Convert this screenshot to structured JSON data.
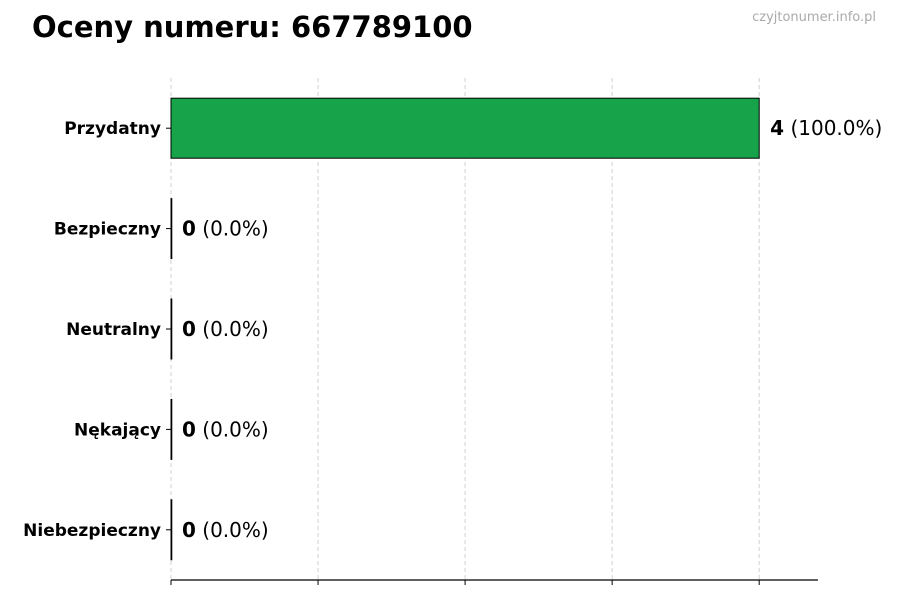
{
  "header": {
    "title": "Oceny numeru: 667789100",
    "watermark": "czyjtonumer.info.pl"
  },
  "chart_data": {
    "type": "bar",
    "orientation": "horizontal",
    "title": "Oceny numeru: 667789100",
    "categories": [
      "Przydatny",
      "Bezpieczny",
      "Neutralny",
      "Nękający",
      "Niebezpieczny"
    ],
    "values": [
      4,
      0,
      0,
      0,
      0
    ],
    "labels": [
      {
        "count": "4",
        "percent": "(100.0%)"
      },
      {
        "count": "0",
        "percent": "(0.0%)"
      },
      {
        "count": "0",
        "percent": "(0.0%)"
      },
      {
        "count": "0",
        "percent": "(0.0%)"
      },
      {
        "count": "0",
        "percent": "(0.0%)"
      }
    ],
    "colors": [
      "#16a34a",
      "#16a34a",
      "#16a34a",
      "#16a34a",
      "#16a34a"
    ],
    "xlim": [
      0,
      4.4
    ],
    "xticks": [
      0,
      1,
      2,
      3,
      4
    ],
    "xtick_labels_shown": false,
    "grid": "x-dashed",
    "xlabel": "",
    "ylabel": ""
  }
}
